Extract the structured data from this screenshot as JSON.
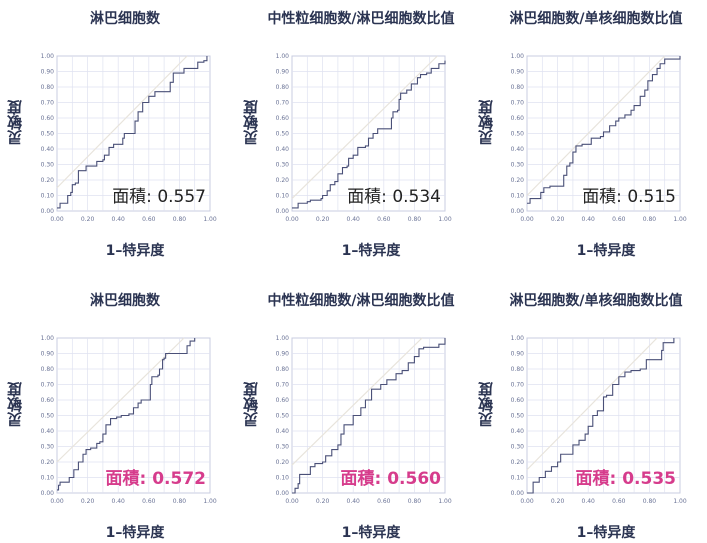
{
  "chart_data": [
    {
      "type": "line",
      "title": "淋巴细胞数",
      "xlabel": "1–特异度",
      "ylabel": "灵敏度",
      "xlim": [
        0,
        1
      ],
      "ylim": [
        0,
        1
      ],
      "ticks": [
        "0.00",
        "0.10",
        "0.20",
        "0.30",
        "0.40",
        "0.50",
        "0.60",
        "0.70",
        "0.80",
        "0.90",
        "1.00"
      ],
      "xticks": [
        "0.00",
        "0.20",
        "0.40",
        "0.60",
        "0.80",
        "1.00"
      ],
      "grid": true,
      "annotation": "面積: 0.557",
      "annotation_color": "#222222",
      "annotation_bold": false,
      "auc": 0.557,
      "reference_line": [
        [
          0,
          0.15
        ],
        [
          0.85,
          1
        ]
      ],
      "points": [
        [
          0,
          0.02
        ],
        [
          0.02,
          0.05
        ],
        [
          0.06,
          0.05
        ],
        [
          0.07,
          0.1
        ],
        [
          0.09,
          0.12
        ],
        [
          0.1,
          0.17
        ],
        [
          0.12,
          0.18
        ],
        [
          0.14,
          0.26
        ],
        [
          0.18,
          0.26
        ],
        [
          0.19,
          0.29
        ],
        [
          0.25,
          0.29
        ],
        [
          0.26,
          0.32
        ],
        [
          0.3,
          0.33
        ],
        [
          0.31,
          0.36
        ],
        [
          0.33,
          0.36
        ],
        [
          0.34,
          0.41
        ],
        [
          0.37,
          0.43
        ],
        [
          0.41,
          0.43
        ],
        [
          0.43,
          0.47
        ],
        [
          0.44,
          0.5
        ],
        [
          0.5,
          0.5
        ],
        [
          0.51,
          0.58
        ],
        [
          0.53,
          0.64
        ],
        [
          0.56,
          0.7
        ],
        [
          0.6,
          0.74
        ],
        [
          0.64,
          0.77
        ],
        [
          0.73,
          0.77
        ],
        [
          0.74,
          0.83
        ],
        [
          0.76,
          0.89
        ],
        [
          0.81,
          0.89
        ],
        [
          0.83,
          0.92
        ],
        [
          0.9,
          0.92
        ],
        [
          0.92,
          0.96
        ],
        [
          0.96,
          0.97
        ],
        [
          0.98,
          1.0
        ]
      ]
    },
    {
      "type": "line",
      "title": "中性粒细胞数/淋巴细胞数比值",
      "xlabel": "1–特异度",
      "ylabel": "灵敏度",
      "xlim": [
        0,
        1
      ],
      "ylim": [
        0,
        1
      ],
      "ticks": [
        "0.00",
        "0.10",
        "0.20",
        "0.30",
        "0.40",
        "0.50",
        "0.60",
        "0.70",
        "0.80",
        "0.90",
        "1.00"
      ],
      "xticks": [
        "0.00",
        "0.20",
        "0.40",
        "0.60",
        "0.80",
        "1.00"
      ],
      "grid": true,
      "annotation": "面積: 0.534",
      "annotation_color": "#222222",
      "annotation_bold": false,
      "auc": 0.534,
      "reference_line": [
        [
          0,
          0.08
        ],
        [
          0.95,
          1
        ]
      ],
      "points": [
        [
          0,
          0.02
        ],
        [
          0.03,
          0.02
        ],
        [
          0.04,
          0.05
        ],
        [
          0.1,
          0.06
        ],
        [
          0.12,
          0.07
        ],
        [
          0.19,
          0.08
        ],
        [
          0.2,
          0.1
        ],
        [
          0.23,
          0.13
        ],
        [
          0.25,
          0.17
        ],
        [
          0.28,
          0.19
        ],
        [
          0.3,
          0.24
        ],
        [
          0.33,
          0.28
        ],
        [
          0.36,
          0.29
        ],
        [
          0.37,
          0.34
        ],
        [
          0.4,
          0.36
        ],
        [
          0.43,
          0.41
        ],
        [
          0.48,
          0.42
        ],
        [
          0.5,
          0.47
        ],
        [
          0.53,
          0.5
        ],
        [
          0.56,
          0.53
        ],
        [
          0.64,
          0.53
        ],
        [
          0.65,
          0.6
        ],
        [
          0.66,
          0.64
        ],
        [
          0.69,
          0.65
        ],
        [
          0.7,
          0.72
        ],
        [
          0.71,
          0.76
        ],
        [
          0.75,
          0.78
        ],
        [
          0.78,
          0.82
        ],
        [
          0.82,
          0.86
        ],
        [
          0.84,
          0.88
        ],
        [
          0.88,
          0.89
        ],
        [
          0.91,
          0.92
        ],
        [
          0.96,
          0.95
        ],
        [
          1,
          0.97
        ]
      ]
    },
    {
      "type": "line",
      "title": "淋巴细胞数/单核细胞数比值",
      "xlabel": "1–特异度",
      "ylabel": "灵敏度",
      "xlim": [
        0,
        1
      ],
      "ylim": [
        0,
        1
      ],
      "ticks": [
        "0.00",
        "0.10",
        "0.20",
        "0.30",
        "0.40",
        "0.50",
        "0.60",
        "0.70",
        "0.80",
        "0.90",
        "1.00"
      ],
      "xticks": [
        "0.00",
        "0.20",
        "0.40",
        "0.60",
        "0.80",
        "1.00"
      ],
      "grid": true,
      "annotation": "面積: 0.515",
      "annotation_color": "#222222",
      "annotation_bold": false,
      "auc": 0.515,
      "reference_line": [
        [
          0,
          0.1
        ],
        [
          0.9,
          1
        ]
      ],
      "points": [
        [
          0,
          0.05
        ],
        [
          0.02,
          0.08
        ],
        [
          0.06,
          0.08
        ],
        [
          0.09,
          0.12
        ],
        [
          0.11,
          0.15
        ],
        [
          0.15,
          0.16
        ],
        [
          0.24,
          0.16
        ],
        [
          0.24,
          0.23
        ],
        [
          0.26,
          0.29
        ],
        [
          0.28,
          0.31
        ],
        [
          0.3,
          0.38
        ],
        [
          0.32,
          0.42
        ],
        [
          0.36,
          0.43
        ],
        [
          0.4,
          0.43
        ],
        [
          0.42,
          0.47
        ],
        [
          0.48,
          0.48
        ],
        [
          0.5,
          0.51
        ],
        [
          0.54,
          0.55
        ],
        [
          0.58,
          0.58
        ],
        [
          0.6,
          0.6
        ],
        [
          0.64,
          0.62
        ],
        [
          0.68,
          0.65
        ],
        [
          0.7,
          0.68
        ],
        [
          0.74,
          0.74
        ],
        [
          0.77,
          0.78
        ],
        [
          0.79,
          0.84
        ],
        [
          0.82,
          0.88
        ],
        [
          0.85,
          0.92
        ],
        [
          0.87,
          0.95
        ],
        [
          0.9,
          0.98
        ],
        [
          1,
          0.98
        ],
        [
          1,
          1
        ]
      ]
    },
    {
      "type": "line",
      "title": "淋巴细胞数",
      "xlabel": "1–特异度",
      "ylabel": "灵敏度",
      "xlim": [
        0,
        1
      ],
      "ylim": [
        0,
        1
      ],
      "ticks": [
        "0.00",
        "0.10",
        "0.20",
        "0.30",
        "0.40",
        "0.50",
        "0.60",
        "0.70",
        "0.80",
        "0.90",
        "1.00"
      ],
      "xticks": [
        "0.00",
        "0.20",
        "0.40",
        "0.60",
        "0.80",
        "1.00"
      ],
      "grid": true,
      "annotation": "面積: 0.572",
      "annotation_color": "#d63c8c",
      "annotation_bold": true,
      "auc": 0.572,
      "reference_line": [
        [
          0,
          0.2
        ],
        [
          0.83,
          1
        ]
      ],
      "points": [
        [
          0,
          0.02
        ],
        [
          0.01,
          0.05
        ],
        [
          0.02,
          0.07
        ],
        [
          0.07,
          0.07
        ],
        [
          0.08,
          0.1
        ],
        [
          0.11,
          0.15
        ],
        [
          0.14,
          0.2
        ],
        [
          0.17,
          0.25
        ],
        [
          0.19,
          0.28
        ],
        [
          0.22,
          0.29
        ],
        [
          0.26,
          0.32
        ],
        [
          0.28,
          0.33
        ],
        [
          0.3,
          0.38
        ],
        [
          0.32,
          0.44
        ],
        [
          0.35,
          0.48
        ],
        [
          0.39,
          0.49
        ],
        [
          0.42,
          0.5
        ],
        [
          0.47,
          0.51
        ],
        [
          0.5,
          0.55
        ],
        [
          0.53,
          0.58
        ],
        [
          0.55,
          0.6
        ],
        [
          0.6,
          0.6
        ],
        [
          0.61,
          0.7
        ],
        [
          0.62,
          0.75
        ],
        [
          0.66,
          0.76
        ],
        [
          0.67,
          0.8
        ],
        [
          0.69,
          0.86
        ],
        [
          0.7,
          0.87
        ],
        [
          0.71,
          0.9
        ],
        [
          0.83,
          0.9
        ],
        [
          0.85,
          0.95
        ],
        [
          0.87,
          0.98
        ],
        [
          0.9,
          1.0
        ]
      ]
    },
    {
      "type": "line",
      "title": "中性粒细胞数/淋巴细胞数比值",
      "xlabel": "1–特异度",
      "ylabel": "灵敏度",
      "xlim": [
        0,
        1
      ],
      "ylim": [
        0,
        1
      ],
      "ticks": [
        "0.00",
        "0.10",
        "0.20",
        "0.30",
        "0.40",
        "0.50",
        "0.60",
        "0.70",
        "0.80",
        "0.90",
        "1.00"
      ],
      "xticks": [
        "0.00",
        "0.20",
        "0.40",
        "0.60",
        "0.80",
        "1.00"
      ],
      "grid": true,
      "annotation": "面積: 0.560",
      "annotation_color": "#d63c8c",
      "annotation_bold": true,
      "auc": 0.56,
      "reference_line": [
        [
          0,
          0.18
        ],
        [
          0.85,
          1
        ]
      ],
      "points": [
        [
          0,
          0
        ],
        [
          0.02,
          0.03
        ],
        [
          0.04,
          0.06
        ],
        [
          0.05,
          0.12
        ],
        [
          0.08,
          0.12
        ],
        [
          0.12,
          0.17
        ],
        [
          0.15,
          0.19
        ],
        [
          0.2,
          0.2
        ],
        [
          0.22,
          0.24
        ],
        [
          0.26,
          0.28
        ],
        [
          0.3,
          0.31
        ],
        [
          0.32,
          0.38
        ],
        [
          0.34,
          0.44
        ],
        [
          0.38,
          0.44
        ],
        [
          0.4,
          0.5
        ],
        [
          0.45,
          0.55
        ],
        [
          0.48,
          0.6
        ],
        [
          0.52,
          0.67
        ],
        [
          0.58,
          0.7
        ],
        [
          0.62,
          0.73
        ],
        [
          0.68,
          0.77
        ],
        [
          0.72,
          0.79
        ],
        [
          0.76,
          0.84
        ],
        [
          0.8,
          0.88
        ],
        [
          0.83,
          0.93
        ],
        [
          0.86,
          0.94
        ],
        [
          0.93,
          0.94
        ],
        [
          0.96,
          0.96
        ],
        [
          1,
          0.96
        ],
        [
          1,
          1
        ]
      ]
    },
    {
      "type": "line",
      "title": "淋巴细胞数/单核细胞数比值",
      "xlabel": "1–特异度",
      "ylabel": "灵敏度",
      "xlim": [
        0,
        1
      ],
      "ylim": [
        0,
        1
      ],
      "ticks": [
        "0.00",
        "0.10",
        "0.20",
        "0.30",
        "0.40",
        "0.50",
        "0.60",
        "0.70",
        "0.80",
        "0.90",
        "1.00"
      ],
      "xticks": [
        "0.00",
        "0.20",
        "0.40",
        "0.60",
        "0.80",
        "1.00"
      ],
      "grid": true,
      "annotation": "面積: 0.535",
      "annotation_color": "#d63c8c",
      "annotation_bold": true,
      "auc": 0.535,
      "reference_line": [
        [
          0,
          0.15
        ],
        [
          0.85,
          1
        ]
      ],
      "points": [
        [
          0,
          0
        ],
        [
          0.04,
          0
        ],
        [
          0.04,
          0.07
        ],
        [
          0.08,
          0.1
        ],
        [
          0.12,
          0.14
        ],
        [
          0.16,
          0.17
        ],
        [
          0.2,
          0.2
        ],
        [
          0.22,
          0.25
        ],
        [
          0.28,
          0.25
        ],
        [
          0.3,
          0.31
        ],
        [
          0.34,
          0.34
        ],
        [
          0.38,
          0.38
        ],
        [
          0.4,
          0.43
        ],
        [
          0.43,
          0.5
        ],
        [
          0.46,
          0.53
        ],
        [
          0.5,
          0.62
        ],
        [
          0.52,
          0.63
        ],
        [
          0.56,
          0.7
        ],
        [
          0.6,
          0.75
        ],
        [
          0.64,
          0.78
        ],
        [
          0.68,
          0.79
        ],
        [
          0.74,
          0.8
        ],
        [
          0.78,
          0.86
        ],
        [
          0.86,
          0.86
        ],
        [
          0.88,
          0.92
        ],
        [
          0.89,
          0.97
        ],
        [
          0.94,
          0.97
        ],
        [
          0.96,
          1.0
        ]
      ]
    }
  ],
  "colors": {
    "curve": "#4a5078",
    "grid": "#dfe2f0",
    "axis": "#c8cce0",
    "reference": "#e8e4dc",
    "title": "#2b3452"
  }
}
